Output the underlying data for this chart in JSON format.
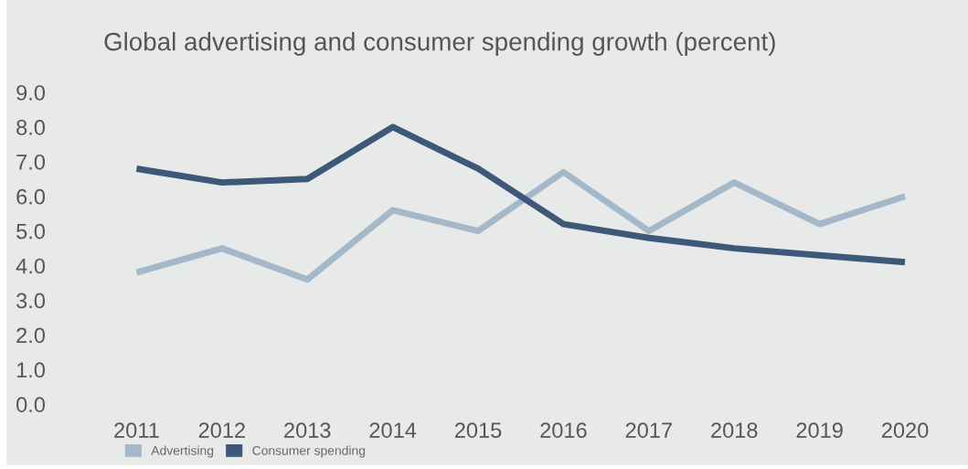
{
  "chart_data": {
    "type": "line",
    "title": "Global advertising and consumer spending growth (percent)",
    "categories": [
      "2011",
      "2012",
      "2013",
      "2014",
      "2015",
      "2016",
      "2017",
      "2018",
      "2019",
      "2020"
    ],
    "series": [
      {
        "name": "Advertising",
        "color": "#a3b8c8",
        "values": [
          3.8,
          4.5,
          3.6,
          5.6,
          5.0,
          6.7,
          5.0,
          6.4,
          5.2,
          6.0
        ]
      },
      {
        "name": "Consumer spending",
        "color": "#3d5878",
        "values": [
          6.8,
          6.4,
          6.5,
          8.0,
          6.8,
          5.2,
          4.8,
          4.5,
          4.3,
          4.1
        ]
      }
    ],
    "ylim": [
      0,
      9
    ],
    "yticks": [
      {
        "value": 0,
        "label": "0.0"
      },
      {
        "value": 1,
        "label": "1.0"
      },
      {
        "value": 2,
        "label": "2.0"
      },
      {
        "value": 3,
        "label": "3.0"
      },
      {
        "value": 4,
        "label": "4.0"
      },
      {
        "value": 5,
        "label": "5.0"
      },
      {
        "value": 6,
        "label": "6.0"
      },
      {
        "value": 7,
        "label": "7.0"
      },
      {
        "value": 8,
        "label": "8.0"
      },
      {
        "value": 9,
        "label": "9.0"
      }
    ],
    "grid": false,
    "legend": "bottom left",
    "marker": "none",
    "line_style": "solid"
  }
}
